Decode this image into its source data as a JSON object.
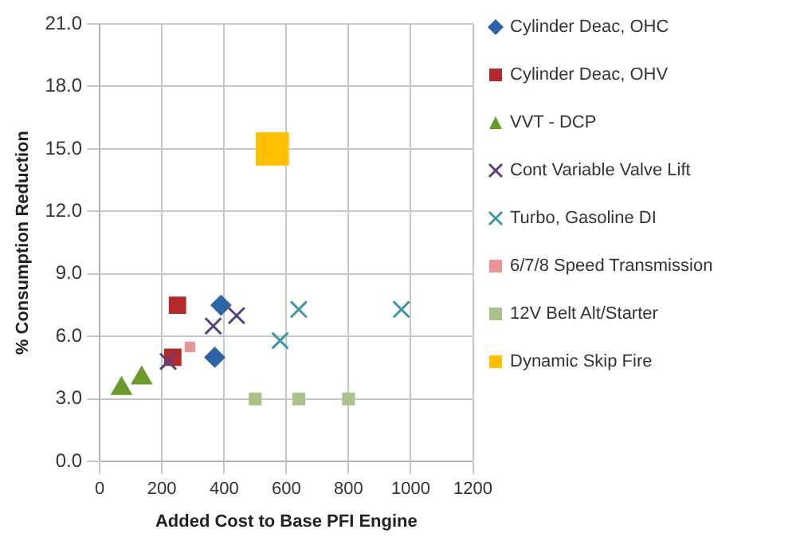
{
  "chart_data": {
    "type": "scatter",
    "xlabel": "Added Cost to Base PFI Engine",
    "ylabel": "% Consumption Reduction",
    "xlim": [
      0,
      1200
    ],
    "xticks": [
      0,
      200,
      400,
      600,
      800,
      1000,
      1200
    ],
    "ylim": [
      0,
      21
    ],
    "yticks": [
      {
        "value": 0,
        "label": "0.0"
      },
      {
        "value": 3,
        "label": "3.0"
      },
      {
        "value": 6,
        "label": "6.0"
      },
      {
        "value": 9,
        "label": "9.0"
      },
      {
        "value": 12,
        "label": "12.0"
      },
      {
        "value": 15,
        "label": "15.0"
      },
      {
        "value": 18,
        "label": "18.0"
      },
      {
        "value": 21,
        "label": "21.0"
      }
    ],
    "grid": true,
    "legend": "right",
    "series": [
      {
        "name": "Cylinder Deac, OHC",
        "color": "#2e63a6",
        "marker": "diamond",
        "x": [
          390,
          370
        ],
        "values": [
          7.5,
          5.0
        ]
      },
      {
        "name": "Cylinder Deac, OHV",
        "color": "#b22a2a",
        "marker": "square",
        "x": [
          250,
          235
        ],
        "values": [
          7.5,
          5.0
        ]
      },
      {
        "name": "VVT - DCP",
        "color": "#6b9a2f",
        "marker": "triangle",
        "x": [
          70,
          135
        ],
        "values": [
          3.5,
          4.0
        ]
      },
      {
        "name": "Cont Variable Valve Lift",
        "color": "#5b3f7e",
        "marker": "cross",
        "x": [
          220,
          365,
          440
        ],
        "values": [
          4.8,
          6.5,
          7.0
        ]
      },
      {
        "name": "Turbo, Gasoline DI",
        "color": "#3f97a8",
        "marker": "cross",
        "x": [
          580,
          640,
          970
        ],
        "values": [
          5.8,
          7.3,
          7.3
        ]
      },
      {
        "name": "6/7/8 Speed Transmission",
        "color": "#e8959a",
        "marker": "square",
        "x": [
          290
        ],
        "values": [
          5.5
        ]
      },
      {
        "name": "12V Belt Alt/Starter",
        "color": "#a9c28a",
        "marker": "square",
        "x": [
          500,
          640,
          800
        ],
        "values": [
          3.0,
          3.0,
          3.0
        ]
      },
      {
        "name": "Dynamic Skip Fire",
        "color": "#ffc000",
        "marker": "square",
        "x": [
          555
        ],
        "values": [
          15.0
        ]
      }
    ]
  }
}
